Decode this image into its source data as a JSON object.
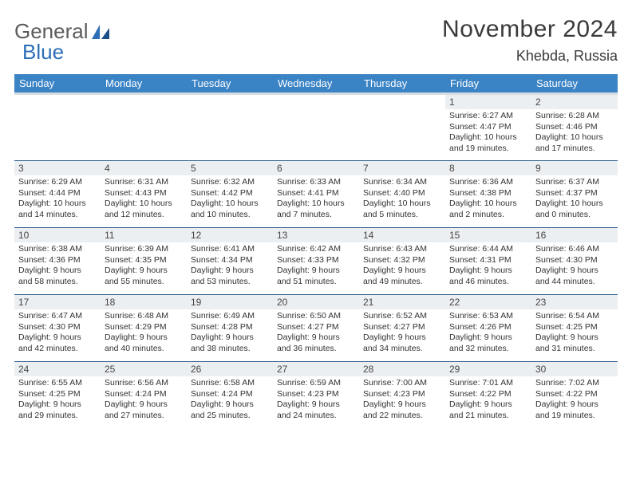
{
  "logo": {
    "word1": "General",
    "word2": "Blue"
  },
  "title": "November 2024",
  "location": "Khebda, Russia",
  "colors": {
    "header_bg": "#3a83c5",
    "header_underline": "#d8dde1",
    "row_border": "#2f5d8e",
    "daynum_bg": "#eceff2",
    "logo_gray": "#5c5c5c",
    "logo_blue": "#2d6fb7"
  },
  "dow": [
    "Sunday",
    "Monday",
    "Tuesday",
    "Wednesday",
    "Thursday",
    "Friday",
    "Saturday"
  ],
  "weeks": [
    [
      {
        "n": "",
        "sr": "",
        "ss": "",
        "dl": ""
      },
      {
        "n": "",
        "sr": "",
        "ss": "",
        "dl": ""
      },
      {
        "n": "",
        "sr": "",
        "ss": "",
        "dl": ""
      },
      {
        "n": "",
        "sr": "",
        "ss": "",
        "dl": ""
      },
      {
        "n": "",
        "sr": "",
        "ss": "",
        "dl": ""
      },
      {
        "n": "1",
        "sr": "Sunrise: 6:27 AM",
        "ss": "Sunset: 4:47 PM",
        "dl": "Daylight: 10 hours and 19 minutes."
      },
      {
        "n": "2",
        "sr": "Sunrise: 6:28 AM",
        "ss": "Sunset: 4:46 PM",
        "dl": "Daylight: 10 hours and 17 minutes."
      }
    ],
    [
      {
        "n": "3",
        "sr": "Sunrise: 6:29 AM",
        "ss": "Sunset: 4:44 PM",
        "dl": "Daylight: 10 hours and 14 minutes."
      },
      {
        "n": "4",
        "sr": "Sunrise: 6:31 AM",
        "ss": "Sunset: 4:43 PM",
        "dl": "Daylight: 10 hours and 12 minutes."
      },
      {
        "n": "5",
        "sr": "Sunrise: 6:32 AM",
        "ss": "Sunset: 4:42 PM",
        "dl": "Daylight: 10 hours and 10 minutes."
      },
      {
        "n": "6",
        "sr": "Sunrise: 6:33 AM",
        "ss": "Sunset: 4:41 PM",
        "dl": "Daylight: 10 hours and 7 minutes."
      },
      {
        "n": "7",
        "sr": "Sunrise: 6:34 AM",
        "ss": "Sunset: 4:40 PM",
        "dl": "Daylight: 10 hours and 5 minutes."
      },
      {
        "n": "8",
        "sr": "Sunrise: 6:36 AM",
        "ss": "Sunset: 4:38 PM",
        "dl": "Daylight: 10 hours and 2 minutes."
      },
      {
        "n": "9",
        "sr": "Sunrise: 6:37 AM",
        "ss": "Sunset: 4:37 PM",
        "dl": "Daylight: 10 hours and 0 minutes."
      }
    ],
    [
      {
        "n": "10",
        "sr": "Sunrise: 6:38 AM",
        "ss": "Sunset: 4:36 PM",
        "dl": "Daylight: 9 hours and 58 minutes."
      },
      {
        "n": "11",
        "sr": "Sunrise: 6:39 AM",
        "ss": "Sunset: 4:35 PM",
        "dl": "Daylight: 9 hours and 55 minutes."
      },
      {
        "n": "12",
        "sr": "Sunrise: 6:41 AM",
        "ss": "Sunset: 4:34 PM",
        "dl": "Daylight: 9 hours and 53 minutes."
      },
      {
        "n": "13",
        "sr": "Sunrise: 6:42 AM",
        "ss": "Sunset: 4:33 PM",
        "dl": "Daylight: 9 hours and 51 minutes."
      },
      {
        "n": "14",
        "sr": "Sunrise: 6:43 AM",
        "ss": "Sunset: 4:32 PM",
        "dl": "Daylight: 9 hours and 49 minutes."
      },
      {
        "n": "15",
        "sr": "Sunrise: 6:44 AM",
        "ss": "Sunset: 4:31 PM",
        "dl": "Daylight: 9 hours and 46 minutes."
      },
      {
        "n": "16",
        "sr": "Sunrise: 6:46 AM",
        "ss": "Sunset: 4:30 PM",
        "dl": "Daylight: 9 hours and 44 minutes."
      }
    ],
    [
      {
        "n": "17",
        "sr": "Sunrise: 6:47 AM",
        "ss": "Sunset: 4:30 PM",
        "dl": "Daylight: 9 hours and 42 minutes."
      },
      {
        "n": "18",
        "sr": "Sunrise: 6:48 AM",
        "ss": "Sunset: 4:29 PM",
        "dl": "Daylight: 9 hours and 40 minutes."
      },
      {
        "n": "19",
        "sr": "Sunrise: 6:49 AM",
        "ss": "Sunset: 4:28 PM",
        "dl": "Daylight: 9 hours and 38 minutes."
      },
      {
        "n": "20",
        "sr": "Sunrise: 6:50 AM",
        "ss": "Sunset: 4:27 PM",
        "dl": "Daylight: 9 hours and 36 minutes."
      },
      {
        "n": "21",
        "sr": "Sunrise: 6:52 AM",
        "ss": "Sunset: 4:27 PM",
        "dl": "Daylight: 9 hours and 34 minutes."
      },
      {
        "n": "22",
        "sr": "Sunrise: 6:53 AM",
        "ss": "Sunset: 4:26 PM",
        "dl": "Daylight: 9 hours and 32 minutes."
      },
      {
        "n": "23",
        "sr": "Sunrise: 6:54 AM",
        "ss": "Sunset: 4:25 PM",
        "dl": "Daylight: 9 hours and 31 minutes."
      }
    ],
    [
      {
        "n": "24",
        "sr": "Sunrise: 6:55 AM",
        "ss": "Sunset: 4:25 PM",
        "dl": "Daylight: 9 hours and 29 minutes."
      },
      {
        "n": "25",
        "sr": "Sunrise: 6:56 AM",
        "ss": "Sunset: 4:24 PM",
        "dl": "Daylight: 9 hours and 27 minutes."
      },
      {
        "n": "26",
        "sr": "Sunrise: 6:58 AM",
        "ss": "Sunset: 4:24 PM",
        "dl": "Daylight: 9 hours and 25 minutes."
      },
      {
        "n": "27",
        "sr": "Sunrise: 6:59 AM",
        "ss": "Sunset: 4:23 PM",
        "dl": "Daylight: 9 hours and 24 minutes."
      },
      {
        "n": "28",
        "sr": "Sunrise: 7:00 AM",
        "ss": "Sunset: 4:23 PM",
        "dl": "Daylight: 9 hours and 22 minutes."
      },
      {
        "n": "29",
        "sr": "Sunrise: 7:01 AM",
        "ss": "Sunset: 4:22 PM",
        "dl": "Daylight: 9 hours and 21 minutes."
      },
      {
        "n": "30",
        "sr": "Sunrise: 7:02 AM",
        "ss": "Sunset: 4:22 PM",
        "dl": "Daylight: 9 hours and 19 minutes."
      }
    ]
  ]
}
